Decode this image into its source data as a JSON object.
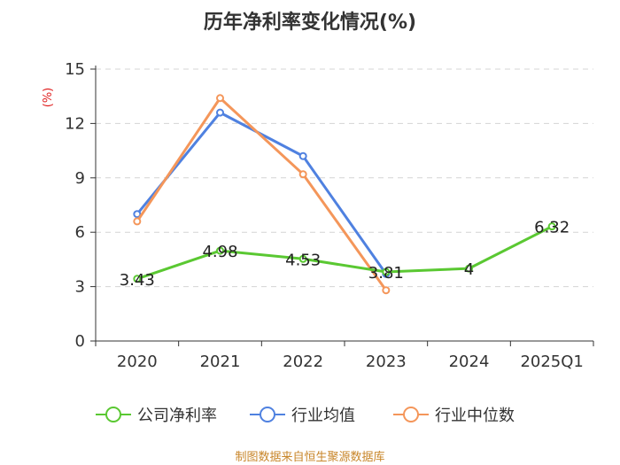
{
  "chart_data": {
    "type": "line",
    "title": "历年净利率变化情况(%)",
    "unit_label": "(%)",
    "categories": [
      "2020",
      "2021",
      "2022",
      "2023",
      "2024",
      "2025Q1"
    ],
    "ylim": [
      0,
      15
    ],
    "yticks": [
      0,
      3,
      6,
      9,
      12,
      15
    ],
    "grid": true,
    "legend_position": "bottom",
    "series": [
      {
        "name": "公司净利率",
        "color": "#5ac832",
        "values": [
          3.43,
          4.98,
          4.53,
          3.81,
          4,
          6.32
        ],
        "labels": [
          "3.43",
          "4.98",
          "4.53",
          "3.81",
          "4",
          "6.32"
        ]
      },
      {
        "name": "行业均值",
        "color": "#4f81e0",
        "values": [
          7.0,
          12.6,
          10.2,
          3.7,
          null,
          null
        ]
      },
      {
        "name": "行业中位数",
        "color": "#f4965a",
        "values": [
          6.6,
          13.4,
          9.2,
          2.8,
          null,
          null
        ]
      }
    ]
  },
  "source_text": "制图数据来自恒生聚源数据库"
}
